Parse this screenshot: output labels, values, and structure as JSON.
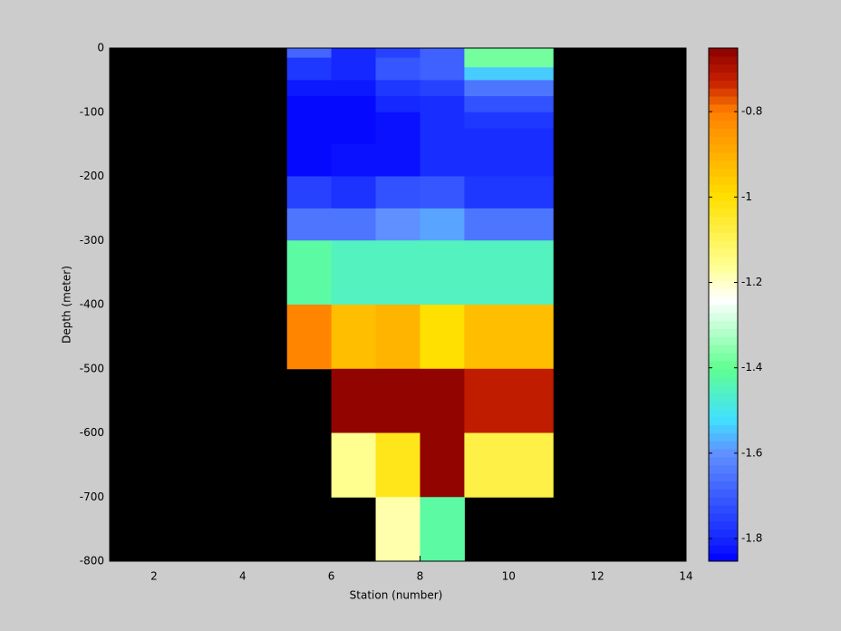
{
  "chart_data": {
    "type": "heatmap",
    "xlabel": "Station (number)",
    "ylabel": "Depth (meter)",
    "xlim": [
      1,
      14
    ],
    "xticks": [
      2,
      4,
      6,
      8,
      10,
      12,
      14
    ],
    "ylim": [
      -800,
      0
    ],
    "yticks": [
      -800,
      -700,
      -600,
      -500,
      -400,
      -300,
      -200,
      -100,
      0
    ],
    "x_edges": [
      5,
      6,
      7,
      8,
      9,
      11
    ],
    "y_edges": [
      0,
      -15,
      -30,
      -50,
      -75,
      -100,
      -125,
      -150,
      -200,
      -250,
      -300,
      -400,
      -500,
      -600,
      -700,
      -800
    ],
    "values": [
      [
        -1.68,
        -1.8,
        -1.75,
        -1.69,
        -1.38
      ],
      [
        -1.77,
        -1.8,
        -1.71,
        -1.69,
        -1.38
      ],
      [
        -1.77,
        -1.8,
        -1.71,
        -1.69,
        -1.54
      ],
      [
        -1.82,
        -1.82,
        -1.77,
        -1.75,
        -1.65
      ],
      [
        -1.84,
        -1.84,
        -1.8,
        -1.79,
        -1.72
      ],
      [
        -1.84,
        -1.84,
        -1.83,
        -1.79,
        -1.77
      ],
      [
        -1.84,
        -1.84,
        -1.83,
        -1.79,
        -1.79
      ],
      [
        -1.84,
        -1.83,
        -1.83,
        -1.79,
        -1.79
      ],
      [
        -1.75,
        -1.78,
        -1.72,
        -1.71,
        -1.77
      ],
      [
        -1.65,
        -1.65,
        -1.6,
        -1.58,
        -1.65
      ],
      [
        -1.42,
        -1.45,
        -1.45,
        -1.45,
        -1.45
      ],
      [
        -0.81,
        -0.93,
        -0.91,
        -1.0,
        -0.93
      ],
      [
        null,
        -0.66,
        -0.66,
        -0.66,
        -0.72
      ],
      [
        null,
        -1.16,
        -1.03,
        -0.66,
        -1.08
      ],
      [
        null,
        null,
        -1.18,
        -1.42,
        null
      ]
    ],
    "background": "#000000",
    "clim": [
      -1.853,
      -0.651
    ],
    "cticks": [
      -1.8,
      -1.6,
      -1.4,
      -1.2,
      -1,
      -0.8
    ],
    "colormap": [
      [
        -1.853,
        "#0000ff"
      ],
      [
        -1.8,
        "#1428ff"
      ],
      [
        -1.6,
        "#6090ff"
      ],
      [
        -1.52,
        "#40e0ff"
      ],
      [
        -1.4,
        "#60ff90"
      ],
      [
        -1.24,
        "#ffffff"
      ],
      [
        -1.16,
        "#ffff90"
      ],
      [
        -1.0,
        "#ffe000"
      ],
      [
        -0.8,
        "#ff8000"
      ],
      [
        -0.73,
        "#c82000"
      ],
      [
        -0.651,
        "#8b0000"
      ]
    ]
  }
}
